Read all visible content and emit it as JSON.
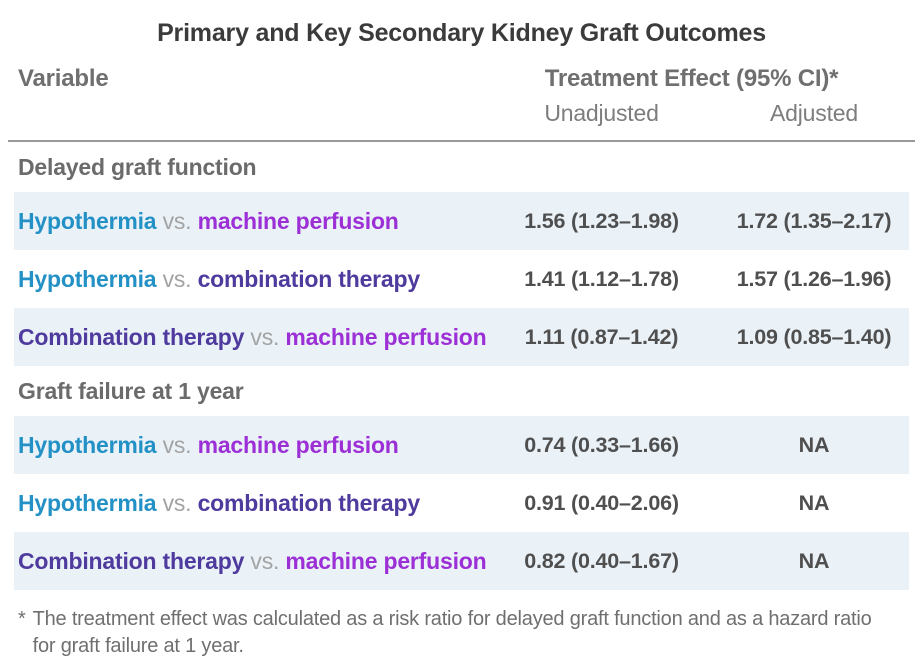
{
  "title": "Primary and Key Secondary Kidney Graft Outcomes",
  "header": {
    "variable": "Variable",
    "treatment_effect": "Treatment Effect (95% CI)*",
    "unadjusted": "Unadjusted",
    "adjusted": "Adjusted"
  },
  "colors": {
    "hypothermia": "#2391c6",
    "machine_perfusion": "#9c30d6",
    "combination_therapy": "#4f3a9e",
    "vs": "#a3a3a3",
    "stripe_bg": "#eaf2f8",
    "rule": "#999999",
    "title_text": "#3b3b3b",
    "header_text": "#6f6f6f",
    "section_text": "#6b6b6b",
    "value_text": "#4f4f4f"
  },
  "sections": [
    {
      "label": "Delayed graft function",
      "rows": [
        {
          "striped": true,
          "parts": [
            {
              "text": "Hypothermia ",
              "color_key": "hypothermia"
            },
            {
              "text": "vs. ",
              "color_key": "vs"
            },
            {
              "text": "machine perfusion",
              "color_key": "machine_perfusion"
            }
          ],
          "unadjusted": "1.56 (1.23–1.98)",
          "adjusted": "1.72 (1.35–2.17)"
        },
        {
          "striped": false,
          "parts": [
            {
              "text": "Hypothermia ",
              "color_key": "hypothermia"
            },
            {
              "text": "vs. ",
              "color_key": "vs"
            },
            {
              "text": "combination therapy",
              "color_key": "combination_therapy"
            }
          ],
          "unadjusted": "1.41 (1.12–1.78)",
          "adjusted": "1.57 (1.26–1.96)"
        },
        {
          "striped": true,
          "parts": [
            {
              "text": "Combination therapy ",
              "color_key": "combination_therapy"
            },
            {
              "text": "vs. ",
              "color_key": "vs"
            },
            {
              "text": "machine perfusion",
              "color_key": "machine_perfusion"
            }
          ],
          "unadjusted": "1.11 (0.87–1.42)",
          "adjusted": "1.09 (0.85–1.40)"
        }
      ]
    },
    {
      "label": "Graft failure at 1 year",
      "rows": [
        {
          "striped": true,
          "parts": [
            {
              "text": "Hypothermia ",
              "color_key": "hypothermia"
            },
            {
              "text": "vs. ",
              "color_key": "vs"
            },
            {
              "text": "machine perfusion",
              "color_key": "machine_perfusion"
            }
          ],
          "unadjusted": "0.74 (0.33–1.66)",
          "adjusted": "NA"
        },
        {
          "striped": false,
          "parts": [
            {
              "text": "Hypothermia ",
              "color_key": "hypothermia"
            },
            {
              "text": "vs. ",
              "color_key": "vs"
            },
            {
              "text": "combination therapy",
              "color_key": "combination_therapy"
            }
          ],
          "unadjusted": "0.91 (0.40–2.06)",
          "adjusted": "NA"
        },
        {
          "striped": true,
          "parts": [
            {
              "text": "Combination therapy ",
              "color_key": "combination_therapy"
            },
            {
              "text": "vs. ",
              "color_key": "vs"
            },
            {
              "text": "machine perfusion",
              "color_key": "machine_perfusion"
            }
          ],
          "unadjusted": "0.82 (0.40–1.67)",
          "adjusted": "NA"
        }
      ]
    }
  ],
  "footnote": {
    "marker": "*",
    "text": "The treatment effect was calculated as a risk ratio for delayed graft function and as a hazard ratio for graft failure at 1 year."
  },
  "chart_data": {
    "type": "table",
    "title": "Primary and Key Secondary Kidney Graft Outcomes",
    "columns": [
      "Variable",
      "Treatment Effect (95% CI)* — Unadjusted",
      "Treatment Effect (95% CI)* — Adjusted"
    ],
    "rows": [
      [
        "Delayed graft function",
        "",
        ""
      ],
      [
        "Hypothermia vs. machine perfusion",
        "1.56 (1.23–1.98)",
        "1.72 (1.35–2.17)"
      ],
      [
        "Hypothermia vs. combination therapy",
        "1.41 (1.12–1.78)",
        "1.57 (1.26–1.96)"
      ],
      [
        "Combination therapy vs. machine perfusion",
        "1.11 (0.87–1.42)",
        "1.09 (0.85–1.40)"
      ],
      [
        "Graft failure at 1 year",
        "",
        ""
      ],
      [
        "Hypothermia vs. machine perfusion",
        "0.74 (0.33–1.66)",
        "NA"
      ],
      [
        "Hypothermia vs. combination therapy",
        "0.91 (0.40–2.06)",
        "NA"
      ],
      [
        "Combination therapy vs. machine perfusion",
        "0.82 (0.40–1.67)",
        "NA"
      ]
    ],
    "footnote": "* The treatment effect was calculated as a risk ratio for delayed graft function and as a hazard ratio for graft failure at 1 year."
  }
}
